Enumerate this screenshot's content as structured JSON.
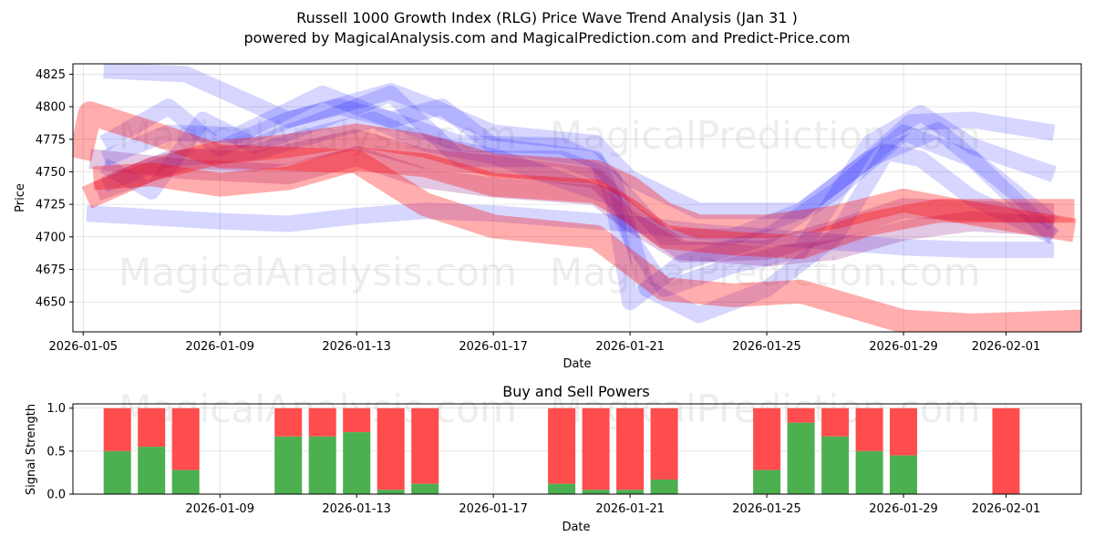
{
  "chart_data": [
    {
      "type": "line",
      "title": "Russell 1000 Growth Index (RLG) Price Wave Trend Analysis (Jan 31 )",
      "subtitle": "powered by MagicalAnalysis.com and MagicalPrediction.com and Predict-Price.com",
      "xlabel": "Date",
      "ylabel": "Price",
      "x_range_days": [
        -0.3,
        29.2
      ],
      "ylim": [
        4627,
        4833
      ],
      "x_ticks": [
        {
          "day": 0,
          "label": "2026-01-05"
        },
        {
          "day": 4,
          "label": "2026-01-09"
        },
        {
          "day": 8,
          "label": "2026-01-13"
        },
        {
          "day": 12,
          "label": "2026-01-17"
        },
        {
          "day": 16,
          "label": "2026-01-21"
        },
        {
          "day": 20,
          "label": "2026-01-25"
        },
        {
          "day": 24,
          "label": "2026-01-29"
        },
        {
          "day": 27,
          "label": "2026-02-01"
        }
      ],
      "y_ticks": [
        4650,
        4675,
        4700,
        4725,
        4750,
        4775,
        4800,
        4825
      ],
      "grid": true,
      "watermarks": [
        "MagicalAnalysis.com",
        "MagicalPrediction.com",
        "MagicalAnalysis.com",
        "MagicalPrediction.com"
      ],
      "series": [
        {
          "name": "blue-wave-1",
          "color": "#0000ff",
          "x": [
            0.6,
            3,
            6,
            9,
            10.2,
            12,
            15,
            16,
            18,
            21,
            23,
            24.2,
            26,
            28.4
          ],
          "y": [
            4828,
            4825,
            4790,
            4812,
            4800,
            4780,
            4772,
            4745,
            4720,
            4720,
            4760,
            4788,
            4790,
            4780
          ]
        },
        {
          "name": "blue-wave-2",
          "color": "#0000ff",
          "x": [
            0.6,
            2.5,
            4,
            6,
            7.5,
            9,
            10.5,
            12,
            15,
            16,
            17,
            19,
            21,
            23,
            24.5,
            26,
            28.4
          ],
          "y": [
            4772,
            4800,
            4768,
            4790,
            4800,
            4790,
            4800,
            4770,
            4760,
            4700,
            4660,
            4678,
            4690,
            4772,
            4795,
            4770,
            4748
          ]
        },
        {
          "name": "blue-wave-3",
          "color": "#0000ff",
          "x": [
            0.1,
            2,
            4,
            6,
            8,
            10,
            12,
            15,
            16,
            18,
            20,
            22,
            24,
            26,
            28.4
          ],
          "y": [
            4718,
            4715,
            4712,
            4710,
            4716,
            4720,
            4718,
            4712,
            4710,
            4704,
            4700,
            4696,
            4692,
            4690,
            4690
          ]
        },
        {
          "name": "blue-wave-4",
          "color": "#0000ff",
          "x": [
            0.6,
            2,
            3.5,
            5,
            7,
            9,
            11,
            14,
            15.5,
            16.5,
            18,
            20,
            22,
            23.5,
            24.5,
            26,
            28.4
          ],
          "y": [
            4755,
            4735,
            4790,
            4770,
            4790,
            4810,
            4760,
            4760,
            4745,
            4660,
            4640,
            4660,
            4700,
            4765,
            4760,
            4730,
            4700
          ]
        },
        {
          "name": "blue-wave-5",
          "color": "#0000ff",
          "x": [
            0.6,
            2.5,
            5,
            7,
            8.5,
            10,
            12,
            15.5,
            16,
            17.5,
            20,
            22,
            24,
            26,
            28.4
          ],
          "y": [
            4740,
            4760,
            4765,
            4780,
            4790,
            4772,
            4762,
            4730,
            4650,
            4680,
            4700,
            4735,
            4780,
            4760,
            4700
          ]
        },
        {
          "name": "blue-wave-6",
          "color": "#0000ff",
          "x": [
            0.6,
            2.5,
            4.5,
            7,
            9,
            11,
            14,
            15,
            17,
            19,
            21,
            23,
            25,
            28.4
          ],
          "y": [
            4760,
            4780,
            4778,
            4810,
            4790,
            4772,
            4770,
            4758,
            4700,
            4700,
            4720,
            4760,
            4782,
            4710
          ]
        },
        {
          "name": "purple-wave-1",
          "color": "#800080",
          "x": [
            0.2,
            3,
            6,
            8,
            10,
            12,
            15,
            16,
            17.5,
            20,
            22,
            24,
            26,
            28.4
          ],
          "y": [
            4760,
            4752,
            4748,
            4762,
            4745,
            4738,
            4732,
            4712,
            4688,
            4690,
            4705,
            4722,
            4720,
            4718
          ]
        },
        {
          "name": "purple-wave-2",
          "color": "#800080",
          "x": [
            0.4,
            3,
            5,
            8,
            10,
            12,
            15,
            16,
            17.5,
            20,
            22,
            24,
            26,
            28.4
          ],
          "y": [
            4735,
            4760,
            4758,
            4775,
            4760,
            4755,
            4745,
            4718,
            4690,
            4685,
            4690,
            4705,
            4712,
            4708
          ]
        },
        {
          "name": "red-wave-1",
          "color": "#ff0000",
          "x": [
            -0.1,
            0.2,
            2,
            4,
            6,
            8,
            10,
            12,
            15,
            16,
            17,
            19,
            21,
            24,
            26,
            29.2
          ],
          "y": [
            4760,
            4795,
            4780,
            4762,
            4760,
            4758,
            4725,
            4708,
            4700,
            4680,
            4660,
            4655,
            4658,
            4635,
            4632,
            4635
          ]
        },
        {
          "name": "red-wave-2",
          "color": "#ff0000",
          "x": [
            0.1,
            2,
            4,
            6,
            8,
            10,
            12,
            15,
            16,
            17,
            18,
            20,
            22,
            24,
            26,
            29.0
          ],
          "y": [
            4730,
            4752,
            4765,
            4770,
            4778,
            4770,
            4755,
            4750,
            4738,
            4718,
            4708,
            4708,
            4715,
            4728,
            4718,
            4705
          ]
        },
        {
          "name": "red-wave-3",
          "color": "#ff0000",
          "x": [
            0.3,
            2,
            4,
            6,
            8,
            10,
            12,
            15,
            16,
            17,
            19,
            21,
            23,
            25,
            29.0
          ],
          "y": [
            4745,
            4748,
            4740,
            4745,
            4760,
            4755,
            4740,
            4735,
            4720,
            4700,
            4695,
            4692,
            4710,
            4720,
            4720
          ]
        }
      ]
    },
    {
      "type": "bar",
      "title": "Buy and Sell Powers",
      "xlabel": "Date",
      "ylabel": "Signal Strength",
      "x_range_days": [
        -0.3,
        29.2
      ],
      "ylim": [
        0,
        1.05
      ],
      "x_ticks": [
        {
          "day": 4,
          "label": "2026-01-09"
        },
        {
          "day": 8,
          "label": "2026-01-13"
        },
        {
          "day": 12,
          "label": "2026-01-17"
        },
        {
          "day": 16,
          "label": "2026-01-21"
        },
        {
          "day": 20,
          "label": "2026-01-25"
        },
        {
          "day": 24,
          "label": "2026-01-29"
        },
        {
          "day": 27,
          "label": "2026-02-01"
        }
      ],
      "y_ticks": [
        {
          "value": 0.0,
          "label": "0.0"
        },
        {
          "value": 0.5,
          "label": "0.5"
        },
        {
          "value": 1.0,
          "label": "1.0"
        }
      ],
      "grid": true,
      "watermarks": [
        "MagicalAnalysis.com",
        "MagicalPrediction.com"
      ],
      "series": [
        {
          "name": "Buy",
          "color": "#4caf50"
        },
        {
          "name": "Sell",
          "color": "#ff4c4c"
        }
      ],
      "bars": [
        {
          "day": 1,
          "buy": 0.5
        },
        {
          "day": 2,
          "buy": 0.55
        },
        {
          "day": 3,
          "buy": 0.28
        },
        {
          "day": 6,
          "buy": 0.67
        },
        {
          "day": 7,
          "buy": 0.67
        },
        {
          "day": 8,
          "buy": 0.72
        },
        {
          "day": 9,
          "buy": 0.05
        },
        {
          "day": 10,
          "buy": 0.12
        },
        {
          "day": 14,
          "buy": 0.12
        },
        {
          "day": 15,
          "buy": 0.05
        },
        {
          "day": 16,
          "buy": 0.05
        },
        {
          "day": 17,
          "buy": 0.17
        },
        {
          "day": 20,
          "buy": 0.28
        },
        {
          "day": 21,
          "buy": 0.83
        },
        {
          "day": 22,
          "buy": 0.67
        },
        {
          "day": 23,
          "buy": 0.5
        },
        {
          "day": 24,
          "buy": 0.45
        },
        {
          "day": 27,
          "buy": 0.0
        }
      ]
    }
  ]
}
